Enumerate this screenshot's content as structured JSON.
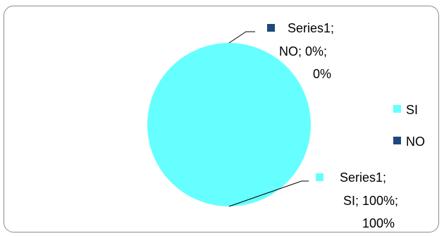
{
  "chart_data": {
    "type": "pie",
    "title": "",
    "categories": [
      "SI",
      "NO"
    ],
    "values": [
      1,
      0
    ],
    "percentages": [
      "100%",
      "0%"
    ],
    "series": [
      {
        "name": "Series1",
        "values": [
          1,
          0
        ]
      }
    ],
    "colors": {
      "SI": "#66FFFF",
      "NO": "#1F497D"
    },
    "data_labels": [
      {
        "category": "NO",
        "lines": [
          "Series1;",
          "NO; 0%;",
          "0%"
        ]
      },
      {
        "category": "SI",
        "lines": [
          "Series1;",
          "SI; 100%;",
          "100%"
        ]
      }
    ],
    "legend": {
      "placement": "right",
      "entries": [
        "SI",
        "NO"
      ]
    }
  }
}
